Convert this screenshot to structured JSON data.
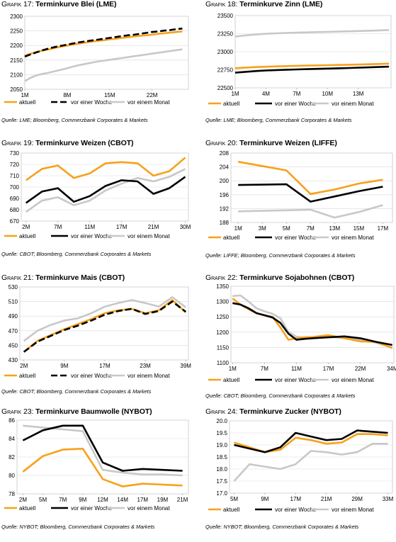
{
  "legend_labels": [
    "aktuell",
    "vor einer Woche",
    "vor einem Monat"
  ],
  "colors": {
    "aktuell": "#f7a11a",
    "woche": "#000000",
    "monat": "#c8c8c8"
  },
  "chart_data": [
    {
      "type": "line",
      "prefix": "Grafik 17:",
      "title": "Terminkurve Blei (LME)",
      "source": "Quelle: LME; Bloomberg, Commerzbank Corporates & Markets",
      "ylim": [
        2050,
        2300
      ],
      "yticks": [
        2050,
        2100,
        2150,
        2200,
        2250,
        2300
      ],
      "xticks": [
        "1M",
        "8M",
        "15M",
        "22M"
      ],
      "xtick_pos": [
        1,
        8,
        15,
        22
      ],
      "x": [
        1,
        2,
        3,
        4,
        5,
        6,
        7,
        8,
        9,
        10,
        11,
        12,
        13,
        14,
        15,
        16,
        17,
        18,
        19,
        20,
        21,
        22,
        23,
        24,
        25,
        26,
        27
      ],
      "xlim": [
        1,
        28
      ],
      "dashed_woche": true,
      "series": [
        {
          "key": "aktuell",
          "values": [
            2165,
            2172,
            2178,
            2183,
            2187,
            2192,
            2196,
            2200,
            2204,
            2207,
            2210,
            2213,
            2216,
            2218,
            2221,
            2223,
            2226,
            2228,
            2231,
            2233,
            2235,
            2237,
            2240,
            2242,
            2244,
            2246,
            2248
          ]
        },
        {
          "key": "woche",
          "values": [
            2162,
            2170,
            2177,
            2184,
            2190,
            2195,
            2199,
            2203,
            2207,
            2211,
            2214,
            2217,
            2220,
            2223,
            2226,
            2229,
            2232,
            2235,
            2237,
            2240,
            2243,
            2246,
            2248,
            2251,
            2253,
            2256,
            2258
          ]
        },
        {
          "key": "monat",
          "values": [
            2078,
            2090,
            2098,
            2103,
            2107,
            2112,
            2117,
            2122,
            2128,
            2133,
            2137,
            2141,
            2145,
            2148,
            2151,
            2154,
            2157,
            2160,
            2163,
            2166,
            2169,
            2172,
            2175,
            2178,
            2181,
            2184,
            2187
          ]
        }
      ]
    },
    {
      "type": "line",
      "prefix": "Grafik 18:",
      "title": "Terminkurve Zinn (LME)",
      "source": "Quelle: LME; Bloomberg, Commerzbank Corporates & Markets",
      "ylim": [
        22500,
        23500
      ],
      "yticks": [
        22500,
        22750,
        23000,
        23250,
        23500
      ],
      "xticks": [
        "1M",
        "4M",
        "7M",
        "10M",
        "13M"
      ],
      "xtick_pos": [
        1,
        4,
        7,
        10,
        13
      ],
      "x": [
        1,
        2,
        3,
        4,
        5,
        6,
        7,
        8,
        9,
        10,
        11,
        12,
        13,
        14,
        15,
        16
      ],
      "xlim": [
        1,
        16.2
      ],
      "dashed_woche": false,
      "series": [
        {
          "key": "aktuell",
          "values": [
            22772,
            22780,
            22787,
            22792,
            22797,
            22801,
            22805,
            22808,
            22811,
            22814,
            22817,
            22820,
            22823,
            22826,
            22830,
            22835
          ]
        },
        {
          "key": "woche",
          "values": [
            22710,
            22722,
            22732,
            22740,
            22746,
            22751,
            22755,
            22759,
            22763,
            22767,
            22771,
            22775,
            22779,
            22783,
            22788,
            22793
          ]
        },
        {
          "key": "monat",
          "values": [
            23210,
            23225,
            23238,
            23248,
            23255,
            23260,
            23265,
            23268,
            23272,
            23275,
            23278,
            23282,
            23286,
            23290,
            23295,
            23300
          ]
        }
      ]
    },
    {
      "type": "line",
      "prefix": "Grafik 19:",
      "title": "Terminkurve Weizen (CBOT)",
      "source": "Quelle: CBOT; Bloomberg, Commerzbank Corporates & Markets",
      "ylim": [
        670,
        730
      ],
      "yticks": [
        670,
        680,
        690,
        700,
        710,
        720,
        730
      ],
      "xticks": [
        "2M",
        "7M",
        "11M",
        "17M",
        "21M",
        "30M"
      ],
      "xtick_pos": [
        0,
        2,
        4,
        6,
        8,
        10
      ],
      "x": [
        0,
        1,
        2,
        3,
        4,
        5,
        6,
        7,
        8,
        9,
        10
      ],
      "xlim": [
        -0.3,
        10.2
      ],
      "dashed_woche": false,
      "series": [
        {
          "key": "aktuell",
          "values": [
            706,
            716,
            719,
            708,
            712,
            721,
            722,
            721,
            710,
            714,
            726
          ]
        },
        {
          "key": "woche",
          "values": [
            686,
            696,
            699,
            687,
            692,
            701,
            706,
            705,
            694,
            699,
            709
          ]
        },
        {
          "key": "monat",
          "values": [
            678,
            688,
            691,
            684,
            688,
            697,
            703,
            708,
            705,
            709,
            716
          ]
        }
      ]
    },
    {
      "type": "line",
      "prefix": "Grafik 20:",
      "title": "Terminkurve Weizen (LIFFE)",
      "source": "Quelle: LIFFE; Bloomberg, Commerzbank Corporates & Markets",
      "ylim": [
        188,
        208
      ],
      "yticks": [
        188,
        192,
        196,
        200,
        204,
        208
      ],
      "xticks": [
        "1M",
        "3M",
        "5M",
        "7M",
        "13M",
        "15M",
        "17M"
      ],
      "xtick_pos": [
        0,
        1,
        2,
        3,
        4,
        5,
        6
      ],
      "x": [
        0,
        2,
        3,
        4,
        5,
        6
      ],
      "xlim": [
        -0.3,
        6.4
      ],
      "dashed_woche": false,
      "series": [
        {
          "key": "aktuell",
          "values": [
            205.5,
            203,
            196.2,
            197.5,
            199.2,
            200.3
          ]
        },
        {
          "key": "woche",
          "values": [
            198.8,
            199,
            194,
            195.5,
            197,
            198.3
          ]
        },
        {
          "key": "monat",
          "values": [
            191.2,
            191.5,
            191.7,
            189.4,
            191,
            193
          ]
        }
      ]
    },
    {
      "type": "line",
      "prefix": "Grafik 21:",
      "title": "Terminkurve Mais (CBOT)",
      "source": "Quelle: CBOT; Bloomberg, Commerzbank Corporates & Markets",
      "ylim": [
        430,
        530
      ],
      "yticks": [
        430,
        450,
        470,
        490,
        510,
        530
      ],
      "xticks": [
        "2M",
        "9M",
        "17M",
        "23M",
        "39M"
      ],
      "xtick_pos": [
        0,
        3,
        6,
        9,
        12
      ],
      "x": [
        0,
        1,
        2,
        3,
        4,
        5,
        6,
        7,
        8,
        9,
        10,
        11,
        12
      ],
      "xlim": [
        -0.3,
        12.2
      ],
      "dashed_woche": true,
      "series": [
        {
          "key": "aktuell",
          "values": [
            441,
            456,
            464,
            472,
            479,
            486,
            494,
            498,
            500,
            494,
            498,
            512,
            495
          ]
        },
        {
          "key": "woche",
          "values": [
            441,
            455,
            463,
            471,
            477,
            484,
            492,
            497,
            500,
            493,
            497,
            510,
            496
          ]
        },
        {
          "key": "monat",
          "values": [
            456,
            470,
            478,
            484,
            487,
            494,
            503,
            508,
            512,
            508,
            503,
            516,
            502
          ]
        }
      ]
    },
    {
      "type": "line",
      "prefix": "Grafik 22:",
      "title": "Terminkurve Sojabohnen (CBOT)",
      "source": "Quelle: CBOT; Bloomberg, Commerzbank Corporates & Markets",
      "ylim": [
        1100,
        1350
      ],
      "yticks": [
        1100,
        1150,
        1200,
        1250,
        1300,
        1350
      ],
      "xticks": [
        "1M",
        "7M",
        "11M",
        "17M",
        "22M",
        "34M"
      ],
      "xtick_pos": [
        0,
        2,
        4,
        6,
        8,
        10
      ],
      "x": [
        0,
        0.5,
        1,
        1.5,
        2,
        2.5,
        3,
        3.5,
        4,
        4.5,
        5,
        6,
        7,
        8,
        9,
        10
      ],
      "xlim": [
        -0.1,
        10.1
      ],
      "dashed_woche": false,
      "series": [
        {
          "key": "aktuell",
          "values": [
            1310,
            1290,
            1275,
            1262,
            1255,
            1250,
            1215,
            1175,
            1180,
            1183,
            1184,
            1190,
            1180,
            1170,
            1168,
            1148
          ]
        },
        {
          "key": "woche",
          "values": [
            1295,
            1290,
            1278,
            1262,
            1255,
            1248,
            1230,
            1195,
            1175,
            1178,
            1180,
            1183,
            1186,
            1180,
            1168,
            1158
          ]
        },
        {
          "key": "monat",
          "values": [
            1318,
            1320,
            1300,
            1278,
            1268,
            1260,
            1245,
            1200,
            1185,
            1182,
            1180,
            1185,
            1180,
            1176,
            1165,
            1150
          ]
        }
      ]
    },
    {
      "type": "line",
      "prefix": "Grafik 23:",
      "title": "Terminkurve Baumwolle (NYBOT)",
      "source": "Quelle: NYBOT; Bloomberg, Commerzbank Corporates & Markets",
      "ylim": [
        78,
        86
      ],
      "yticks": [
        78,
        80,
        82,
        84,
        86
      ],
      "xticks": [
        "2M",
        "5M",
        "7M",
        "9M",
        "12M",
        "14M",
        "17M",
        "19M",
        "21M"
      ],
      "xtick_pos": [
        0,
        1,
        2,
        3,
        4,
        5,
        6,
        7,
        8
      ],
      "x": [
        0,
        1,
        2,
        3,
        4,
        5,
        6,
        7,
        8
      ],
      "xlim": [
        -0.3,
        8.3
      ],
      "dashed_woche": false,
      "series": [
        {
          "key": "aktuell",
          "values": [
            80.4,
            82.1,
            82.8,
            82.9,
            79.6,
            78.8,
            79.1,
            79.0,
            78.9
          ]
        },
        {
          "key": "woche",
          "values": [
            83.8,
            84.9,
            85.4,
            85.4,
            81.4,
            80.5,
            80.7,
            80.6,
            80.5
          ]
        },
        {
          "key": "monat",
          "values": [
            85.4,
            85.2,
            85.0,
            84.8,
            80.6,
            80.3,
            80.1,
            80.1,
            80.0
          ]
        }
      ]
    },
    {
      "type": "line",
      "prefix": "Grafik 24:",
      "title": "Terminkurve Zucker (NYBOT)",
      "source": "Quelle: NYBOT; Bloomberg, Commerzbank Corporates & Markets",
      "ylim": [
        17.0,
        20.0
      ],
      "yticks": [
        17.0,
        17.5,
        18.0,
        18.5,
        19.0,
        19.5,
        20.0
      ],
      "xticks": [
        "5M",
        "9M",
        "17M",
        "21M",
        "29M",
        "33M"
      ],
      "xtick_pos": [
        0,
        2,
        4,
        6,
        8,
        10
      ],
      "x": [
        0,
        1,
        2,
        3,
        4,
        5,
        6,
        7,
        8,
        9,
        10
      ],
      "xlim": [
        -0.3,
        10.3
      ],
      "dashed_woche": false,
      "series": [
        {
          "key": "aktuell",
          "values": [
            19.1,
            18.9,
            18.7,
            18.8,
            19.3,
            19.2,
            19.05,
            19.1,
            19.45,
            19.45,
            19.4
          ]
        },
        {
          "key": "woche",
          "values": [
            19.0,
            18.85,
            18.7,
            18.9,
            19.5,
            19.35,
            19.2,
            19.25,
            19.6,
            19.55,
            19.5
          ]
        },
        {
          "key": "monat",
          "values": [
            17.5,
            18.2,
            18.1,
            18.0,
            18.2,
            18.75,
            18.7,
            18.6,
            18.7,
            19.05,
            19.05
          ]
        }
      ]
    }
  ]
}
